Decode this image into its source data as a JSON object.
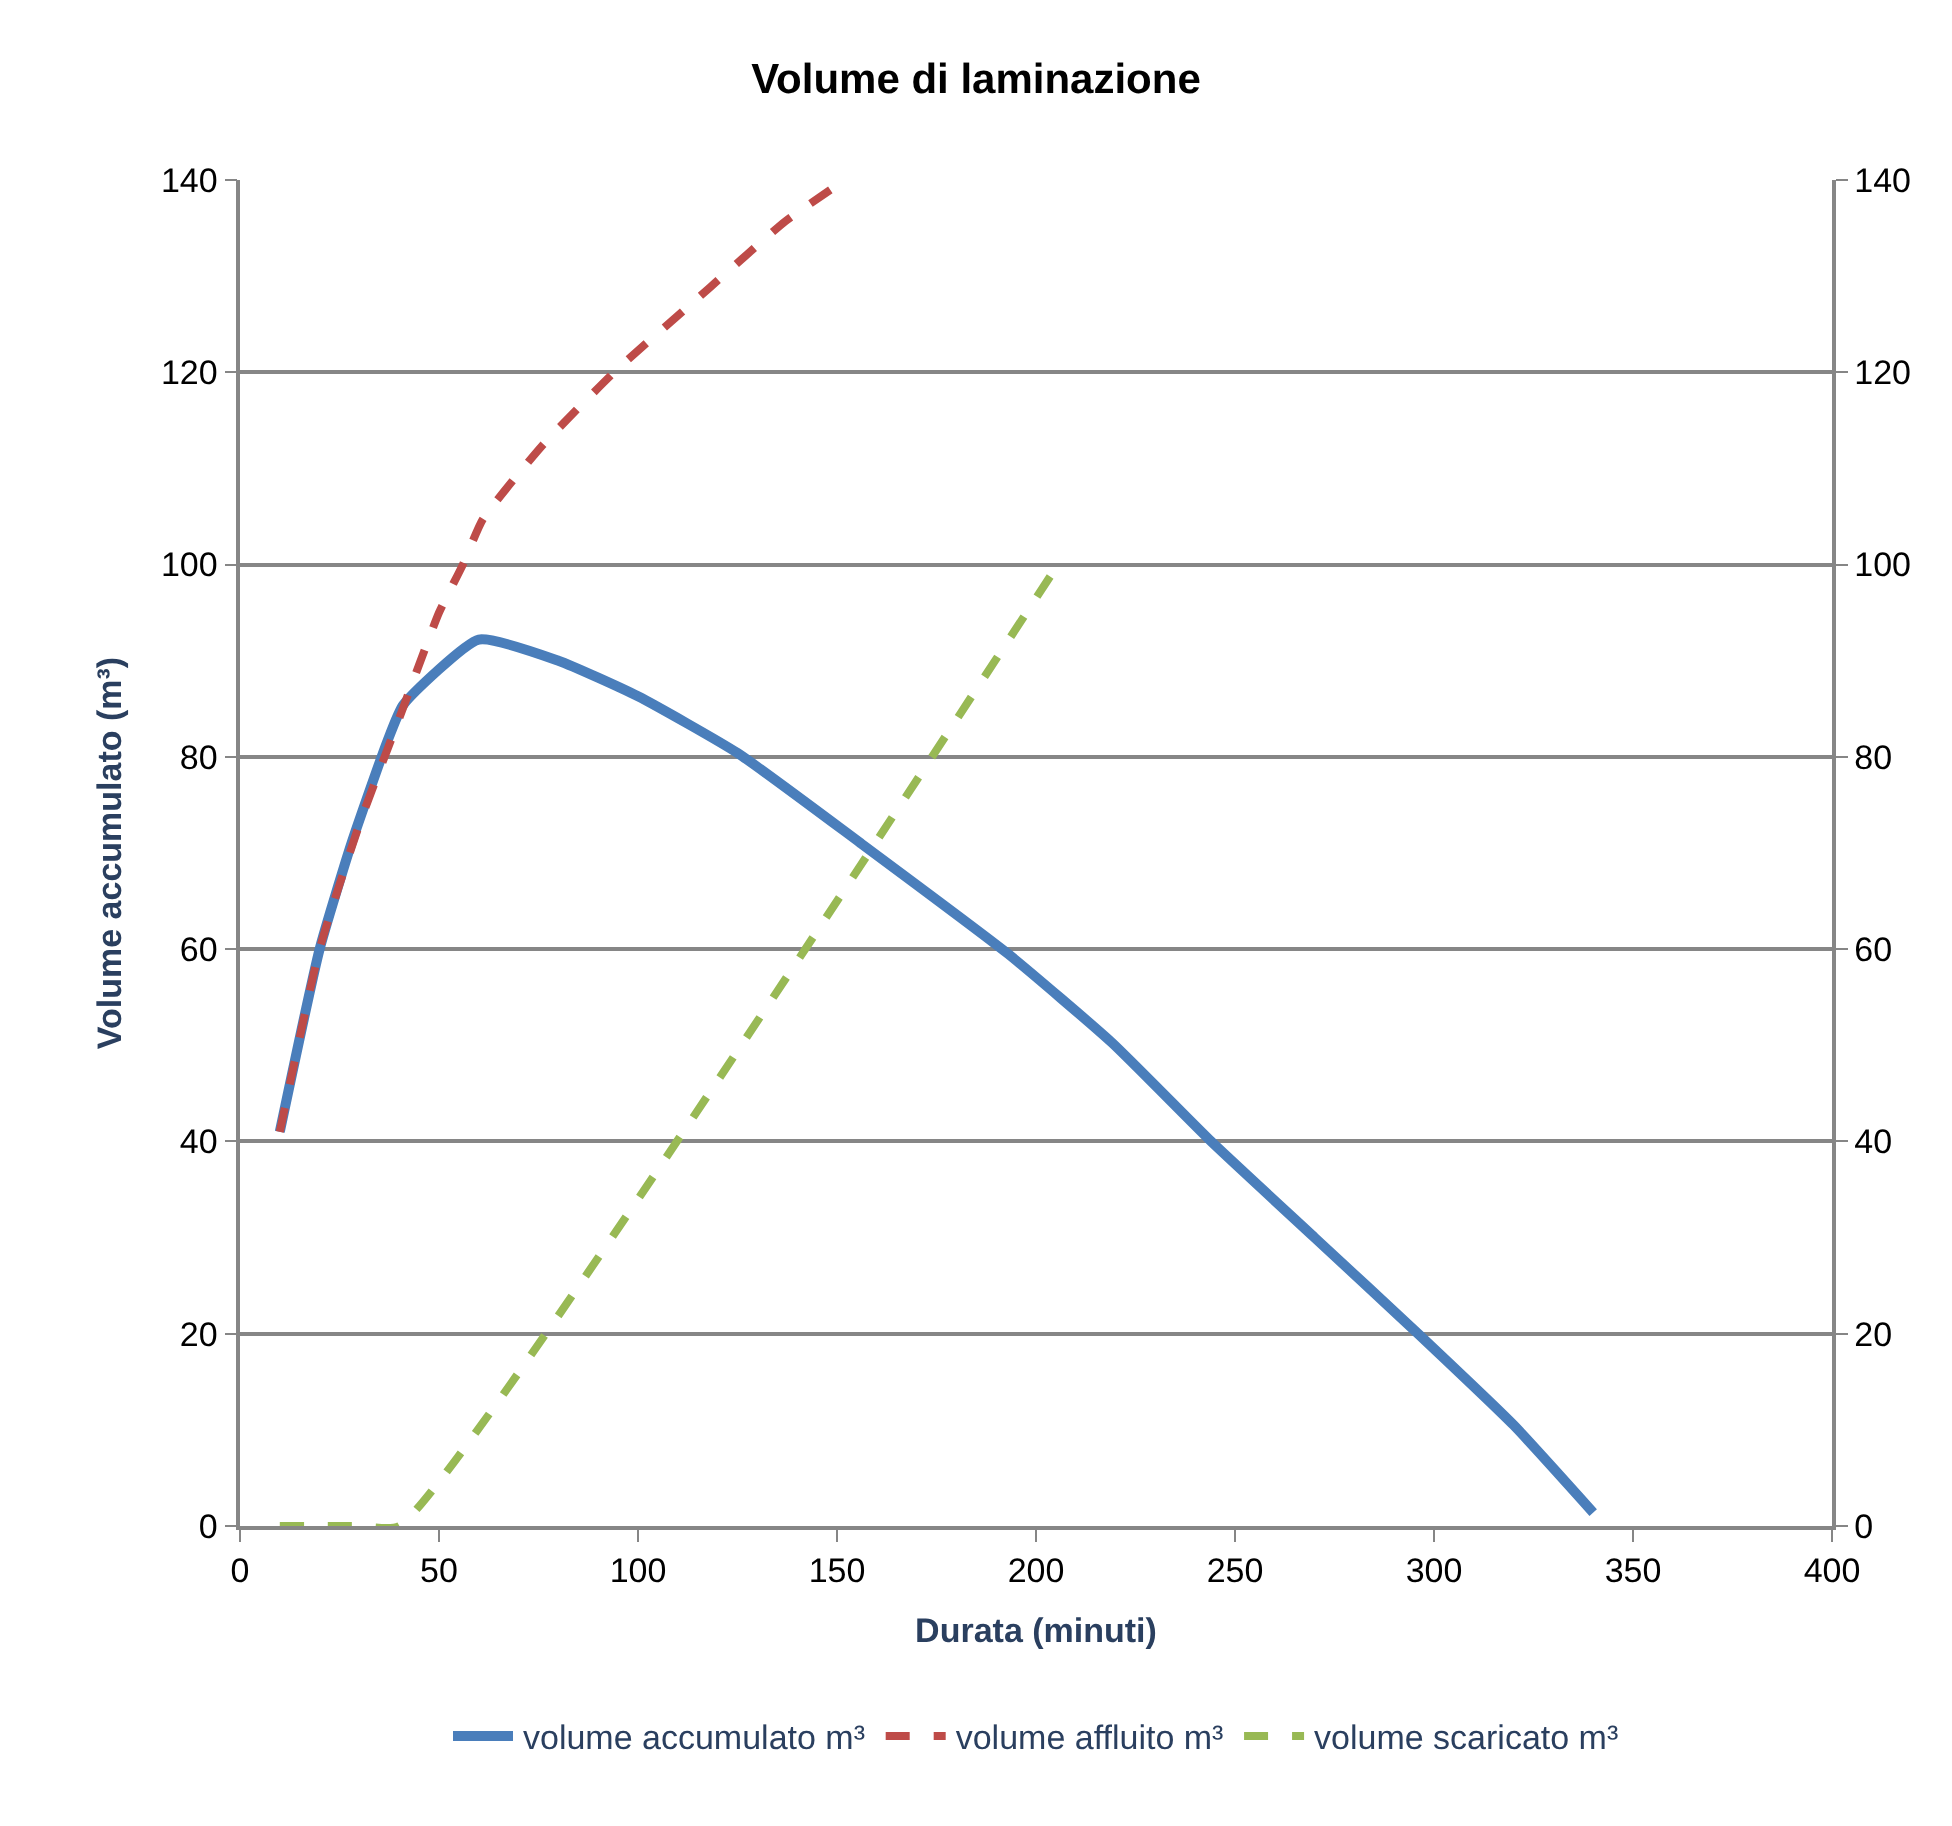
{
  "chart_data": {
    "type": "line",
    "title": "Volume di laminazione",
    "xlabel": "Durata (minuti)",
    "ylabel": "Volume accumulato (m³)",
    "xlim": [
      0,
      400
    ],
    "xticks": [
      0,
      50,
      100,
      150,
      200,
      250,
      300,
      350,
      400
    ],
    "ylim": [
      0,
      140
    ],
    "yticks": [
      0,
      20,
      40,
      60,
      80,
      100,
      120,
      140
    ],
    "y2lim": [
      0,
      140
    ],
    "y2ticks": [
      0,
      20,
      40,
      60,
      80,
      100,
      120,
      140
    ],
    "grid": "y",
    "legend": "bottom",
    "marker": "none",
    "series": [
      {
        "name": "volume accumulato m³",
        "color": "#4a7ebb",
        "line_style": "solid",
        "x": [
          10,
          20,
          28,
          37,
          41,
          60,
          80,
          100,
          125,
          156,
          193,
          219,
          244,
          270,
          296,
          320,
          340
        ],
        "values": [
          41,
          60,
          71,
          81.6,
          85.4,
          92.2,
          90,
          86.3,
          80.4,
          71,
          59.5,
          50.3,
          40,
          30,
          20,
          10.5,
          1.4
        ]
      },
      {
        "name": "volume affluito m³",
        "color": "#be4b48",
        "line_style": "dashed",
        "x": [
          10,
          20,
          30,
          40,
          50,
          56,
          61,
          76,
          94,
          118,
          137,
          152
        ],
        "values": [
          41,
          60,
          73,
          84,
          95,
          100,
          104.7,
          112.4,
          120,
          128.8,
          135.7,
          140
        ]
      },
      {
        "name": "volume scaricato m³",
        "color": "#98b954",
        "line_style": "dashed",
        "x": [
          10,
          20,
          30,
          40,
          205.5
        ],
        "values": [
          0,
          0,
          0,
          0,
          100
        ]
      }
    ]
  }
}
